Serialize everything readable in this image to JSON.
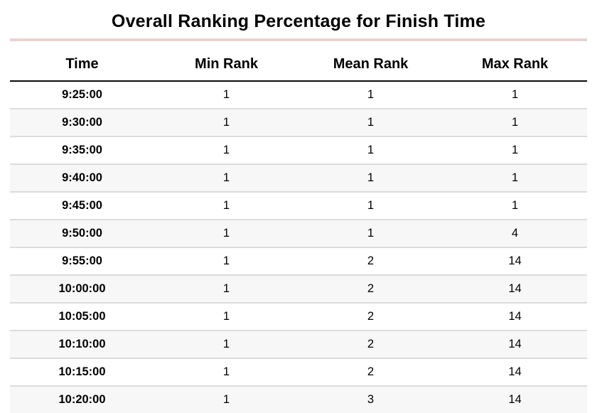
{
  "colors": {
    "title_underline": "#e5d5d3",
    "header_border": "#0a0a0a",
    "row_separator": "#dcdcdc",
    "stripe_background": "#f7f7f7",
    "text": "#000000"
  },
  "chart_data": {
    "type": "table",
    "title": "Overall Ranking Percentage for Finish Time",
    "columns": [
      "Time",
      "Min Rank",
      "Mean Rank",
      "Max Rank"
    ],
    "rows": [
      [
        "9:25:00",
        "1",
        "1",
        "1"
      ],
      [
        "9:30:00",
        "1",
        "1",
        "1"
      ],
      [
        "9:35:00",
        "1",
        "1",
        "1"
      ],
      [
        "9:40:00",
        "1",
        "1",
        "1"
      ],
      [
        "9:45:00",
        "1",
        "1",
        "1"
      ],
      [
        "9:50:00",
        "1",
        "1",
        "4"
      ],
      [
        "9:55:00",
        "1",
        "2",
        "14"
      ],
      [
        "10:00:00",
        "1",
        "2",
        "14"
      ],
      [
        "10:05:00",
        "1",
        "2",
        "14"
      ],
      [
        "10:10:00",
        "1",
        "2",
        "14"
      ],
      [
        "10:15:00",
        "1",
        "2",
        "14"
      ],
      [
        "10:20:00",
        "1",
        "3",
        "14"
      ]
    ]
  }
}
